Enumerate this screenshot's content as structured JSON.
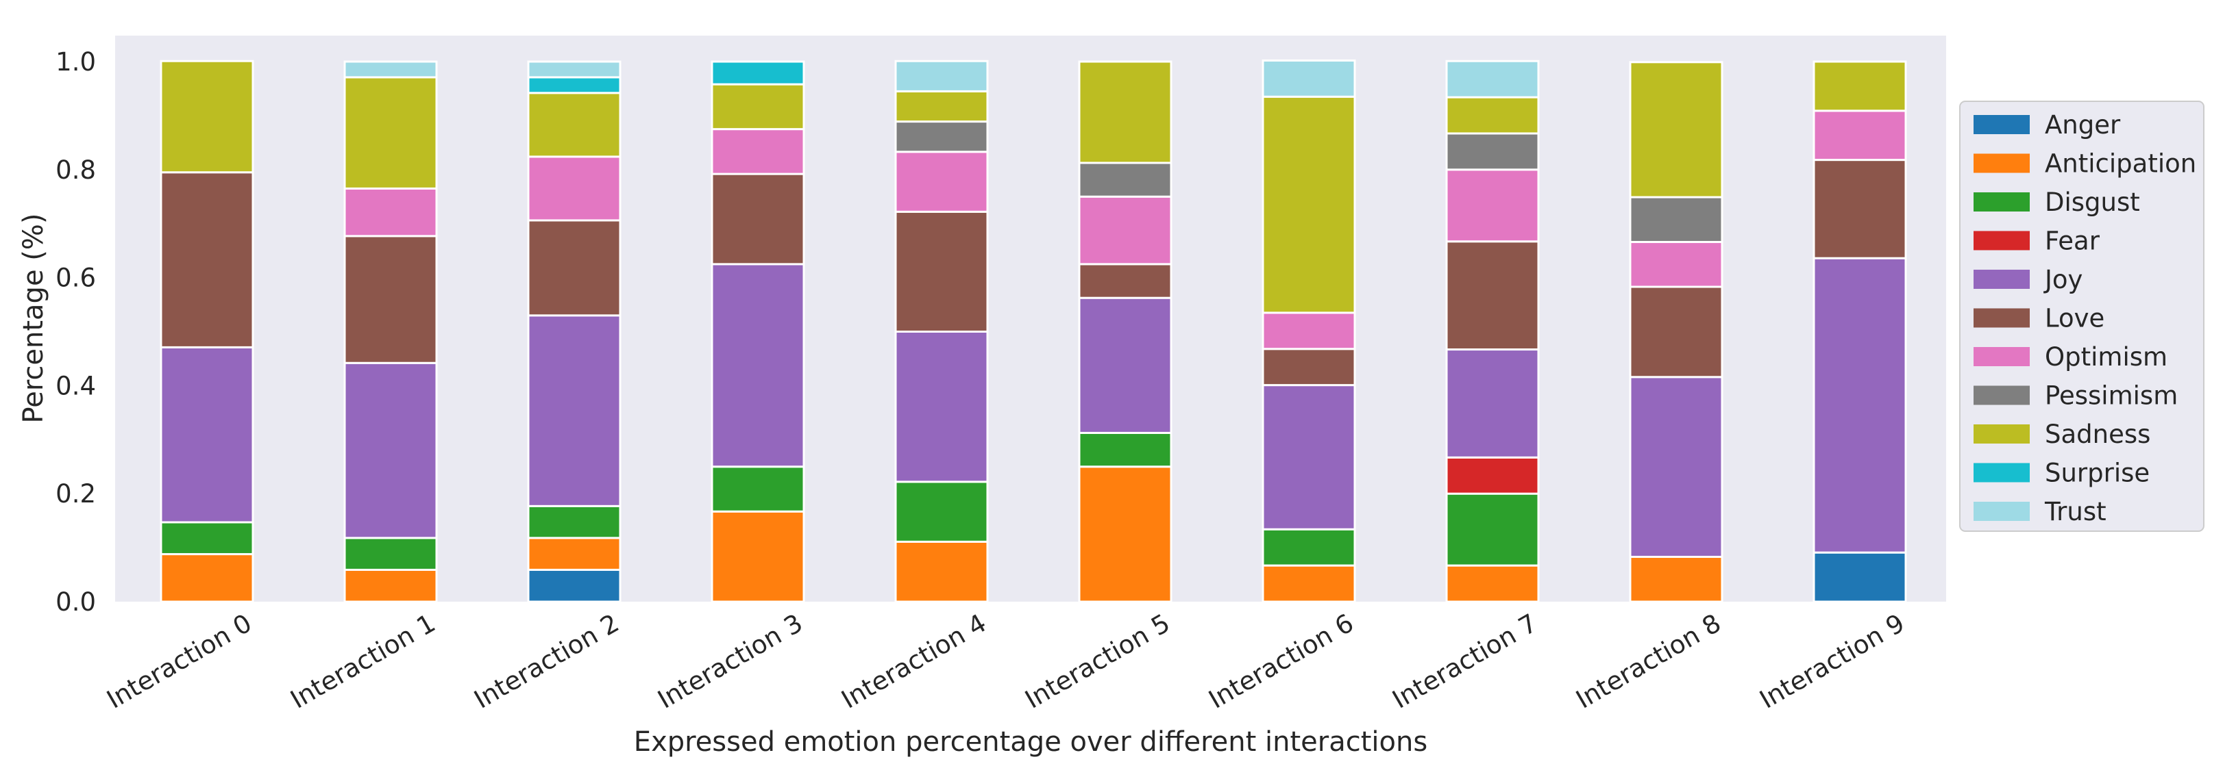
{
  "chart_data": {
    "type": "bar",
    "stacked": true,
    "title": "",
    "xlabel": "Expressed emotion percentage over different interactions",
    "ylabel": "Percentage (%)",
    "ylim": [
      0,
      1.0
    ],
    "yticks": [
      "0.0",
      "0.2",
      "0.4",
      "0.6",
      "0.8",
      "1.0"
    ],
    "grid": false,
    "legend_position": "right",
    "categories": [
      "Interaction 0",
      "Interaction 1",
      "Interaction 2",
      "Interaction 3",
      "Interaction 4",
      "Interaction 5",
      "Interaction 6",
      "Interaction 7",
      "Interaction 8",
      "Interaction 9"
    ],
    "series": [
      {
        "name": "Anger",
        "color": "#1f77b4",
        "values": [
          0,
          0,
          0.059,
          0,
          0,
          0,
          0,
          0,
          0,
          0.091
        ]
      },
      {
        "name": "Anticipation",
        "color": "#ff7f0e",
        "values": [
          0.088,
          0.059,
          0.059,
          0.167,
          0.111,
          0.25,
          0.067,
          0.067,
          0.083,
          0
        ]
      },
      {
        "name": "Disgust",
        "color": "#2ca02c",
        "values": [
          0.059,
          0.059,
          0.059,
          0.083,
          0.111,
          0.0625,
          0.067,
          0.133,
          0,
          0
        ]
      },
      {
        "name": "Fear",
        "color": "#d62728",
        "values": [
          0,
          0,
          0,
          0,
          0,
          0,
          0,
          0.067,
          0,
          0
        ]
      },
      {
        "name": "Joy",
        "color": "#9467bd",
        "values": [
          0.324,
          0.324,
          0.353,
          0.375,
          0.278,
          0.25,
          0.267,
          0.2,
          0.333,
          0.545
        ]
      },
      {
        "name": "Love",
        "color": "#8c564b",
        "values": [
          0.324,
          0.235,
          0.176,
          0.167,
          0.222,
          0.0625,
          0.067,
          0.2,
          0.167,
          0.182
        ]
      },
      {
        "name": "Optimism",
        "color": "#e377c2",
        "values": [
          0,
          0.088,
          0.118,
          0.083,
          0.111,
          0.125,
          0.067,
          0.133,
          0.083,
          0.091
        ]
      },
      {
        "name": "Pessimism",
        "color": "#7f7f7f",
        "values": [
          0,
          0,
          0,
          0,
          0.056,
          0.0625,
          0,
          0.067,
          0.083,
          0
        ]
      },
      {
        "name": "Sadness",
        "color": "#bcbd22",
        "values": [
          0.206,
          0.206,
          0.118,
          0.083,
          0.056,
          0.1875,
          0.4,
          0.067,
          0.25,
          0.091
        ]
      },
      {
        "name": "Surprise",
        "color": "#17becf",
        "values": [
          0,
          0,
          0.029,
          0.042,
          0,
          0,
          0,
          0,
          0,
          0
        ]
      },
      {
        "name": "Trust",
        "color": "#9edae5",
        "values": [
          0,
          0.029,
          0.029,
          0,
          0.056,
          0,
          0.067,
          0.067,
          0,
          0
        ]
      }
    ]
  }
}
